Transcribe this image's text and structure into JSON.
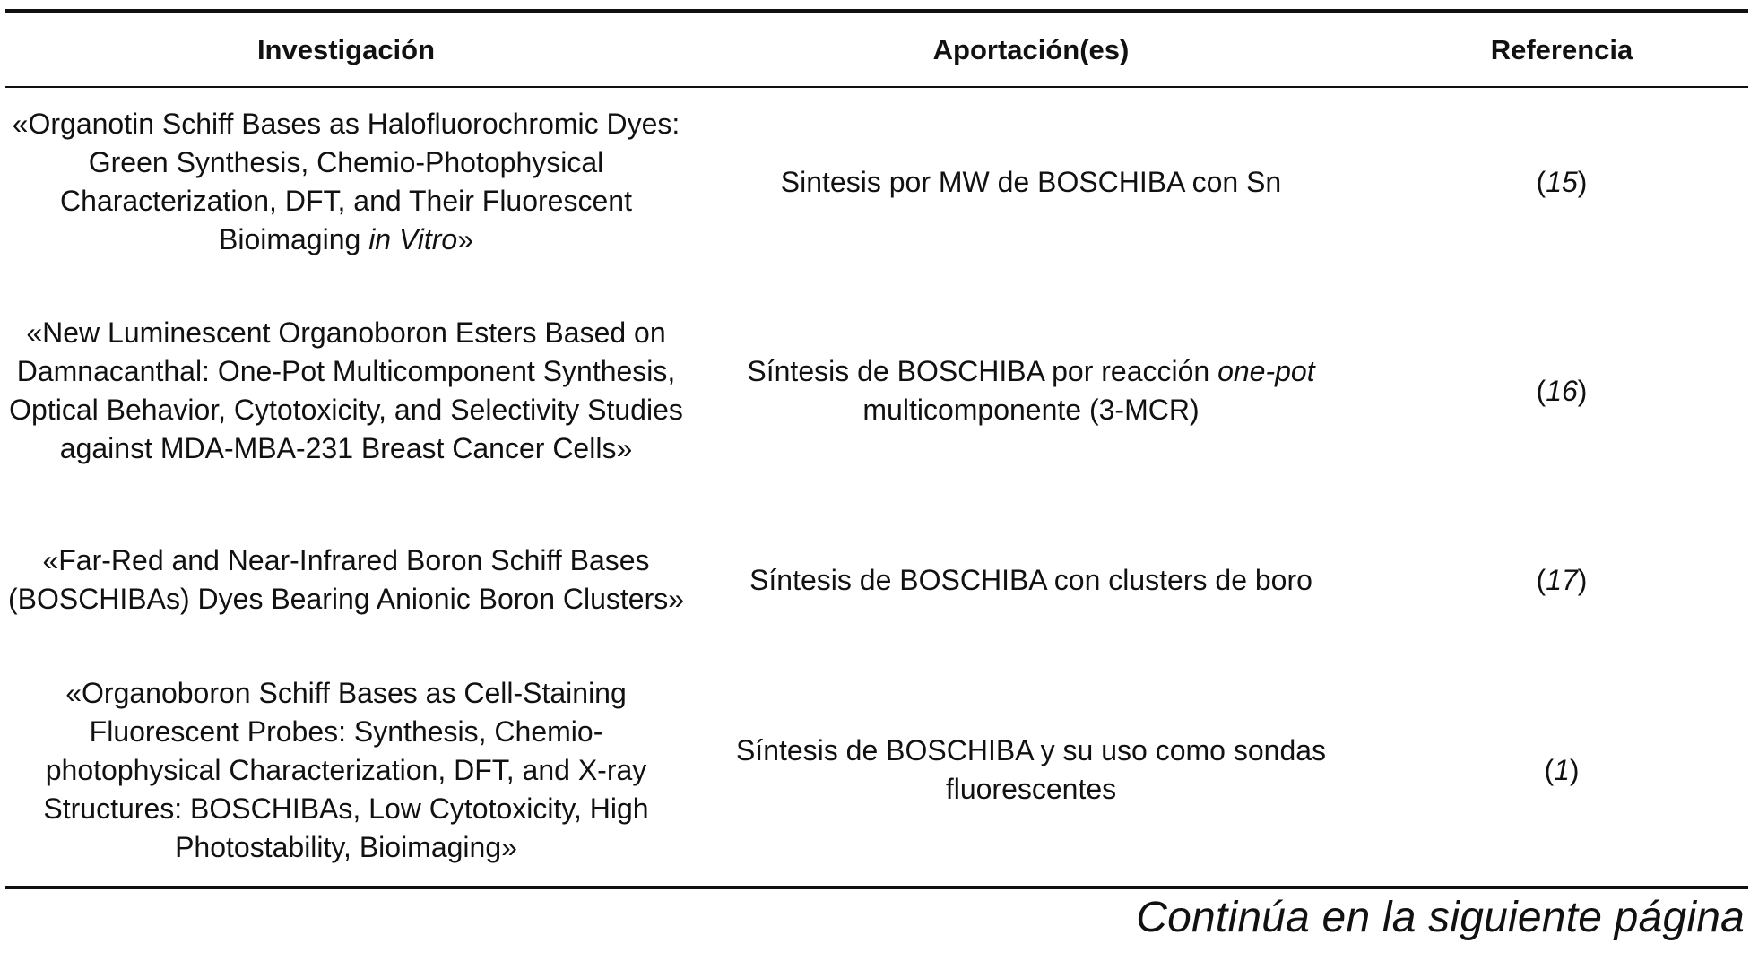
{
  "table": {
    "headers": {
      "investigacion": "Investigación",
      "aportacion": "Aportación(es)",
      "referencia": "Referencia"
    },
    "rows": [
      {
        "title_text": "«Organotin Schiff Bases as Halofluorochromic Dyes: Green Synthesis, Chemio-Photophysical Characterization, DFT, and Their Fluorescent Bioimaging ",
        "title_italic": "in Vitro",
        "title_end": "»",
        "contrib_text": "Sintesis por MW de BOSCHIBA con Sn",
        "contrib_italic": "",
        "contrib_end": "",
        "ref_open": "(",
        "ref_num": "15",
        "ref_close": ")"
      },
      {
        "title_text": "«New Luminescent Organoboron Esters Based on Damnacanthal: One-Pot Multicomponent Synthesis, Optical Behavior, Cytotoxicity, and Selectivity Studies against MDA-MBA-231 Breast Cancer Cells»",
        "title_italic": "",
        "title_end": "",
        "contrib_text": "Síntesis de BOSCHIBA por reacción ",
        "contrib_italic": "one-pot",
        "contrib_end": " multicomponente (3-MCR)",
        "ref_open": "(",
        "ref_num": "16",
        "ref_close": ")"
      },
      {
        "title_text": "«Far-Red and Near-Infrared Boron Schiff Bases (BOSCHIBAs) Dyes Bearing Anionic Boron Clusters»",
        "title_italic": "",
        "title_end": "",
        "contrib_text": "Síntesis de BOSCHIBA con clusters de boro",
        "contrib_italic": "",
        "contrib_end": "",
        "ref_open": "(",
        "ref_num": "17",
        "ref_close": ")"
      },
      {
        "title_text": "«Organoboron Schiff Bases as Cell-Staining Fluorescent Probes: Synthesis, Chemio-photophysical Characterization, DFT, and X-ray Structures: BOSCHIBAs, Low Cytotoxicity, High Photostability, Bioimaging»",
        "title_italic": "",
        "title_end": "",
        "contrib_text": "Síntesis de BOSCHIBA y su uso como sondas fluorescentes",
        "contrib_italic": "",
        "contrib_end": "",
        "ref_open": "(",
        "ref_num": "1",
        "ref_close": ")"
      }
    ]
  },
  "footer": {
    "continue_text": "Continúa en la siguiente página"
  }
}
